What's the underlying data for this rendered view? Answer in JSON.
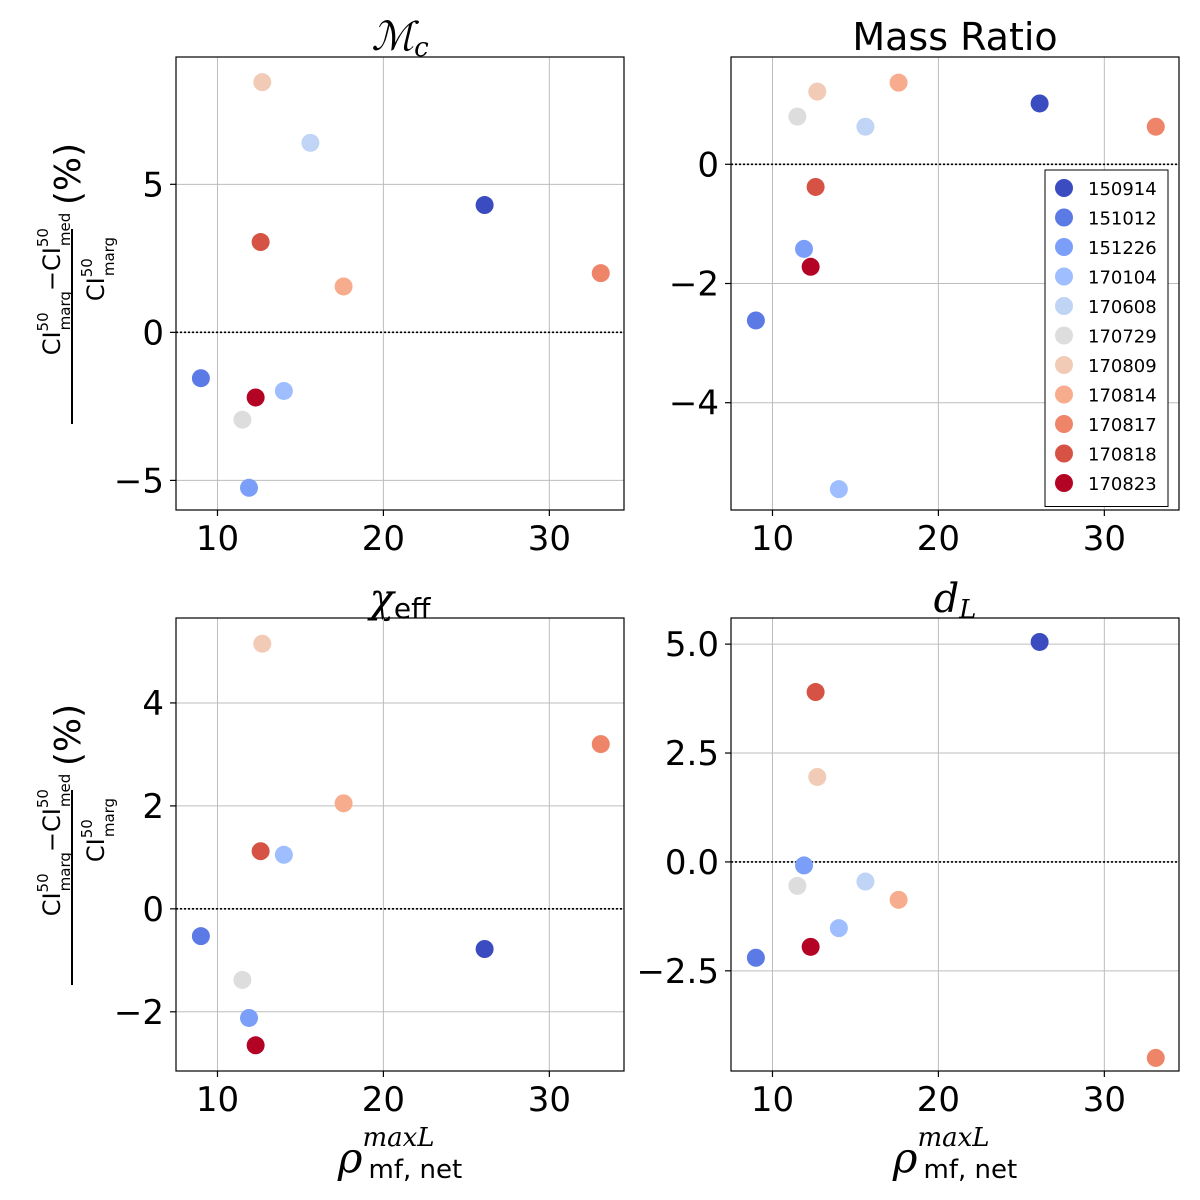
{
  "events": [
    "150914",
    "151012",
    "151226",
    "170104",
    "170608",
    "170729",
    "170809",
    "170814",
    "170817",
    "170818",
    "170823"
  ],
  "colors": [
    "#3b4cc0",
    "#5b7ae5",
    "#7b9ff9",
    "#9ebeff",
    "#c0d4f5",
    "#dddddd",
    "#f2cbb7",
    "#f7ac8e",
    "#ee8468",
    "#d65244",
    "#b40426"
  ],
  "y_label": {
    "numer_a": "CI",
    "numer_a_sup": "50",
    "numer_a_sub": "marg",
    "minus": "−",
    "numer_b": "CI",
    "numer_b_sup": "50",
    "numer_b_sub": "med",
    "denom": "CI",
    "denom_sup": "50",
    "denom_sub": "marg",
    "unit": "(%)"
  },
  "x_label": {
    "rho": "ρ",
    "sup": "maxL",
    "sub": "mf, net"
  },
  "chart_data": [
    {
      "type": "scatter",
      "title": "ℳ",
      "title_sub": "c",
      "xlim": [
        7.5,
        34.5
      ],
      "ylim": [
        -6.0,
        9.3
      ],
      "xticks": [
        10,
        20,
        30
      ],
      "xtick_labels": [
        "10",
        "20",
        "30"
      ],
      "yticks": [
        -5,
        0,
        5
      ],
      "ytick_labels": [
        "−5",
        "0",
        "5"
      ],
      "points": [
        {
          "event": "150914",
          "x": 26.1,
          "y": 4.3
        },
        {
          "event": "151012",
          "x": 9.0,
          "y": -1.55
        },
        {
          "event": "151226",
          "x": 11.9,
          "y": -5.25
        },
        {
          "event": "170104",
          "x": 14.0,
          "y": -1.98
        },
        {
          "event": "170608",
          "x": 15.6,
          "y": 6.4
        },
        {
          "event": "170729",
          "x": 11.5,
          "y": -2.95
        },
        {
          "event": "170809",
          "x": 12.7,
          "y": 8.45
        },
        {
          "event": "170814",
          "x": 17.6,
          "y": 1.55
        },
        {
          "event": "170817",
          "x": 33.1,
          "y": 2.0
        },
        {
          "event": "170818",
          "x": 12.6,
          "y": 3.05
        },
        {
          "event": "170823",
          "x": 12.3,
          "y": -2.2
        }
      ]
    },
    {
      "type": "scatter",
      "title": "Mass Ratio",
      "xlim": [
        7.5,
        34.5
      ],
      "ylim": [
        -5.8,
        1.8
      ],
      "xticks": [
        10,
        20,
        30
      ],
      "xtick_labels": [
        "10",
        "20",
        "30"
      ],
      "yticks": [
        -4,
        -2,
        0
      ],
      "ytick_labels": [
        "−4",
        "−2",
        "0"
      ],
      "legend": "right",
      "points": [
        {
          "event": "150914",
          "x": 26.1,
          "y": 1.02
        },
        {
          "event": "151012",
          "x": 9.0,
          "y": -2.62
        },
        {
          "event": "151226",
          "x": 11.9,
          "y": -1.42
        },
        {
          "event": "170104",
          "x": 14.0,
          "y": -5.45
        },
        {
          "event": "170608",
          "x": 15.6,
          "y": 0.63
        },
        {
          "event": "170729",
          "x": 11.5,
          "y": 0.8
        },
        {
          "event": "170809",
          "x": 12.7,
          "y": 1.22
        },
        {
          "event": "170814",
          "x": 17.6,
          "y": 1.37
        },
        {
          "event": "170817",
          "x": 33.1,
          "y": 0.63
        },
        {
          "event": "170818",
          "x": 12.6,
          "y": -0.38
        },
        {
          "event": "170823",
          "x": 12.3,
          "y": -1.72
        }
      ]
    },
    {
      "type": "scatter",
      "title": "χ",
      "title_sub": "eff",
      "xlim": [
        7.5,
        34.5
      ],
      "ylim": [
        -3.15,
        5.65
      ],
      "xticks": [
        10,
        20,
        30
      ],
      "xtick_labels": [
        "10",
        "20",
        "30"
      ],
      "yticks": [
        -2,
        0,
        2,
        4
      ],
      "ytick_labels": [
        "−2",
        "0",
        "2",
        "4"
      ],
      "points": [
        {
          "event": "150914",
          "x": 26.1,
          "y": -0.78
        },
        {
          "event": "151012",
          "x": 9.0,
          "y": -0.53
        },
        {
          "event": "151226",
          "x": 11.9,
          "y": -2.12
        },
        {
          "event": "170104",
          "x": 14.0,
          "y": 1.05
        },
        {
          "event": "170608",
          "x": 15.6,
          "y": null
        },
        {
          "event": "170729",
          "x": 11.5,
          "y": -1.38
        },
        {
          "event": "170809",
          "x": 12.7,
          "y": 5.15
        },
        {
          "event": "170814",
          "x": 17.6,
          "y": 2.05
        },
        {
          "event": "170817",
          "x": 33.1,
          "y": 3.2
        },
        {
          "event": "170818",
          "x": 12.6,
          "y": 1.12
        },
        {
          "event": "170823",
          "x": 12.3,
          "y": -2.65
        }
      ]
    },
    {
      "type": "scatter",
      "title": "d",
      "title_sub": "L",
      "xlim": [
        7.5,
        34.5
      ],
      "ylim": [
        -4.8,
        5.6
      ],
      "xticks": [
        10,
        20,
        30
      ],
      "xtick_labels": [
        "10",
        "20",
        "30"
      ],
      "yticks": [
        -2.5,
        0,
        2.5,
        5
      ],
      "ytick_labels": [
        "−2.5",
        "0.0",
        "2.5",
        "5.0"
      ],
      "points": [
        {
          "event": "150914",
          "x": 26.1,
          "y": 5.05
        },
        {
          "event": "151012",
          "x": 9.0,
          "y": -2.2
        },
        {
          "event": "151226",
          "x": 11.9,
          "y": -0.08
        },
        {
          "event": "170104",
          "x": 14.0,
          "y": -1.52
        },
        {
          "event": "170608",
          "x": 15.6,
          "y": -0.45
        },
        {
          "event": "170729",
          "x": 11.5,
          "y": -0.55
        },
        {
          "event": "170809",
          "x": 12.7,
          "y": 1.95
        },
        {
          "event": "170814",
          "x": 17.6,
          "y": -0.87
        },
        {
          "event": "170817",
          "x": 33.1,
          "y": -4.5
        },
        {
          "event": "170818",
          "x": 12.6,
          "y": 3.9
        },
        {
          "event": "170823",
          "x": 12.3,
          "y": -1.95
        }
      ]
    }
  ]
}
